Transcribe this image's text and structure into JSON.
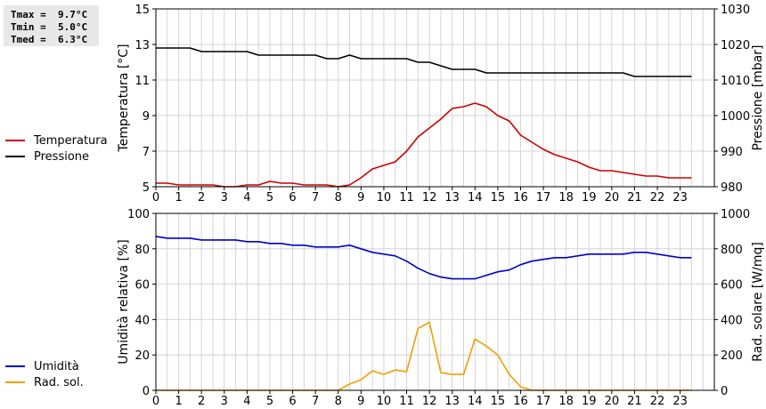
{
  "stats": {
    "tmax": "Tmax =  9.7°C",
    "tmin": "Tmin =  5.0°C",
    "tmed": "Tmed =  6.3°C"
  },
  "chart_data": [
    {
      "type": "line",
      "x_ticks": [
        "0",
        "1",
        "2",
        "3",
        "4",
        "5",
        "6",
        "7",
        "8",
        "9",
        "10",
        "11",
        "12",
        "13",
        "14",
        "15",
        "16",
        "17",
        "18",
        "19",
        "20",
        "21",
        "22",
        "23"
      ],
      "xlim": [
        0,
        24.5
      ],
      "grid": true,
      "left_axis": {
        "label": "Temperatura [°C]",
        "ylim": [
          5,
          15
        ],
        "ticks": [
          "5",
          "7",
          "9",
          "11",
          "13",
          "15"
        ]
      },
      "right_axis": {
        "label": "Pressione [mbar]",
        "ylim": [
          980,
          1030
        ],
        "ticks": [
          "980",
          "990",
          "1000",
          "1010",
          "1020",
          "1030"
        ]
      },
      "series": [
        {
          "name": "Temperatura",
          "color": "#cc0000",
          "axis": "left",
          "x": [
            0,
            0.5,
            1,
            1.5,
            2,
            2.5,
            3,
            3.5,
            4,
            4.5,
            5,
            5.5,
            6,
            6.5,
            7,
            7.5,
            8,
            8.5,
            9,
            9.5,
            10,
            10.5,
            11,
            11.5,
            12,
            12.5,
            13,
            13.5,
            14,
            14.5,
            15,
            15.5,
            16,
            16.5,
            17,
            17.5,
            18,
            18.5,
            19,
            19.5,
            20,
            20.5,
            21,
            21.5,
            22,
            22.5,
            23,
            23.5
          ],
          "y": [
            5.2,
            5.2,
            5.1,
            5.1,
            5.1,
            5.1,
            5.0,
            5.0,
            5.1,
            5.1,
            5.3,
            5.2,
            5.2,
            5.1,
            5.1,
            5.1,
            5.0,
            5.1,
            5.5,
            6.0,
            6.2,
            6.4,
            7.0,
            7.8,
            8.3,
            8.8,
            9.4,
            9.5,
            9.7,
            9.5,
            9.0,
            8.7,
            7.9,
            7.5,
            7.1,
            6.8,
            6.6,
            6.4,
            6.1,
            5.9,
            5.9,
            5.8,
            5.7,
            5.6,
            5.6,
            5.5,
            5.5,
            5.5
          ]
        },
        {
          "name": "Pressione",
          "color": "#000000",
          "axis": "right",
          "x": [
            0,
            0.5,
            1,
            1.5,
            2,
            2.5,
            3,
            3.5,
            4,
            4.5,
            5,
            5.5,
            6,
            6.5,
            7,
            7.5,
            8,
            8.5,
            9,
            9.5,
            10,
            10.5,
            11,
            11.5,
            12,
            12.5,
            13,
            13.5,
            14,
            14.5,
            15,
            15.5,
            16,
            16.5,
            17,
            17.5,
            18,
            18.5,
            19,
            19.5,
            20,
            20.5,
            21,
            21.5,
            22,
            22.5,
            23,
            23.5
          ],
          "y": [
            1019,
            1019,
            1019,
            1019,
            1018,
            1018,
            1018,
            1018,
            1018,
            1017,
            1017,
            1017,
            1017,
            1017,
            1017,
            1016,
            1016,
            1017,
            1016,
            1016,
            1016,
            1016,
            1016,
            1015,
            1015,
            1014,
            1013,
            1013,
            1013,
            1012,
            1012,
            1012,
            1012,
            1012,
            1012,
            1012,
            1012,
            1012,
            1012,
            1012,
            1012,
            1012,
            1011,
            1011,
            1011,
            1011,
            1011,
            1011
          ]
        }
      ]
    },
    {
      "type": "line",
      "x_ticks": [
        "0",
        "1",
        "2",
        "3",
        "4",
        "5",
        "6",
        "7",
        "8",
        "9",
        "10",
        "11",
        "12",
        "13",
        "14",
        "15",
        "16",
        "17",
        "18",
        "19",
        "20",
        "21",
        "22",
        "23"
      ],
      "xlim": [
        0,
        24.5
      ],
      "grid": true,
      "left_axis": {
        "label": "Umidità relativa [%]",
        "ylim": [
          0,
          100
        ],
        "ticks": [
          "0",
          "20",
          "40",
          "60",
          "80",
          "100"
        ]
      },
      "right_axis": {
        "label": "Rad. solare [W/mq]",
        "ylim": [
          0,
          1000
        ],
        "ticks": [
          "0",
          "200",
          "400",
          "600",
          "800",
          "1000"
        ]
      },
      "series": [
        {
          "name": "Umidità",
          "color": "#0000cc",
          "axis": "left",
          "x": [
            0,
            0.5,
            1,
            1.5,
            2,
            2.5,
            3,
            3.5,
            4,
            4.5,
            5,
            5.5,
            6,
            6.5,
            7,
            7.5,
            8,
            8.5,
            9,
            9.5,
            10,
            10.5,
            11,
            11.5,
            12,
            12.5,
            13,
            13.5,
            14,
            14.5,
            15,
            15.5,
            16,
            16.5,
            17,
            17.5,
            18,
            18.5,
            19,
            19.5,
            20,
            20.5,
            21,
            21.5,
            22,
            22.5,
            23,
            23.5
          ],
          "y": [
            87,
            86,
            86,
            86,
            85,
            85,
            85,
            85,
            84,
            84,
            83,
            83,
            82,
            82,
            81,
            81,
            81,
            82,
            80,
            78,
            77,
            76,
            73,
            69,
            66,
            64,
            63,
            63,
            63,
            65,
            67,
            68,
            71,
            73,
            74,
            75,
            75,
            76,
            77,
            77,
            77,
            77,
            78,
            78,
            77,
            76,
            75,
            75
          ]
        },
        {
          "name": "Rad. sol.",
          "color": "#f0a000",
          "axis": "right",
          "x": [
            0,
            0.5,
            1,
            1.5,
            2,
            2.5,
            3,
            3.5,
            4,
            4.5,
            5,
            5.5,
            6,
            6.5,
            7,
            7.5,
            8,
            8.5,
            9,
            9.5,
            10,
            10.5,
            11,
            11.5,
            12,
            12.5,
            13,
            13.5,
            14,
            14.5,
            15,
            15.5,
            16,
            16.5,
            17,
            17.5,
            18,
            18.5,
            19,
            19.5,
            20,
            20.5,
            21,
            21.5,
            22,
            22.5,
            23,
            23.5
          ],
          "y": [
            0,
            0,
            0,
            0,
            0,
            0,
            0,
            0,
            0,
            0,
            0,
            0,
            0,
            0,
            0,
            0,
            0,
            35,
            60,
            110,
            90,
            115,
            105,
            350,
            385,
            100,
            90,
            90,
            290,
            250,
            200,
            90,
            20,
            0,
            0,
            0,
            0,
            0,
            0,
            0,
            0,
            0,
            0,
            0,
            0,
            0,
            0,
            0
          ]
        }
      ]
    }
  ]
}
